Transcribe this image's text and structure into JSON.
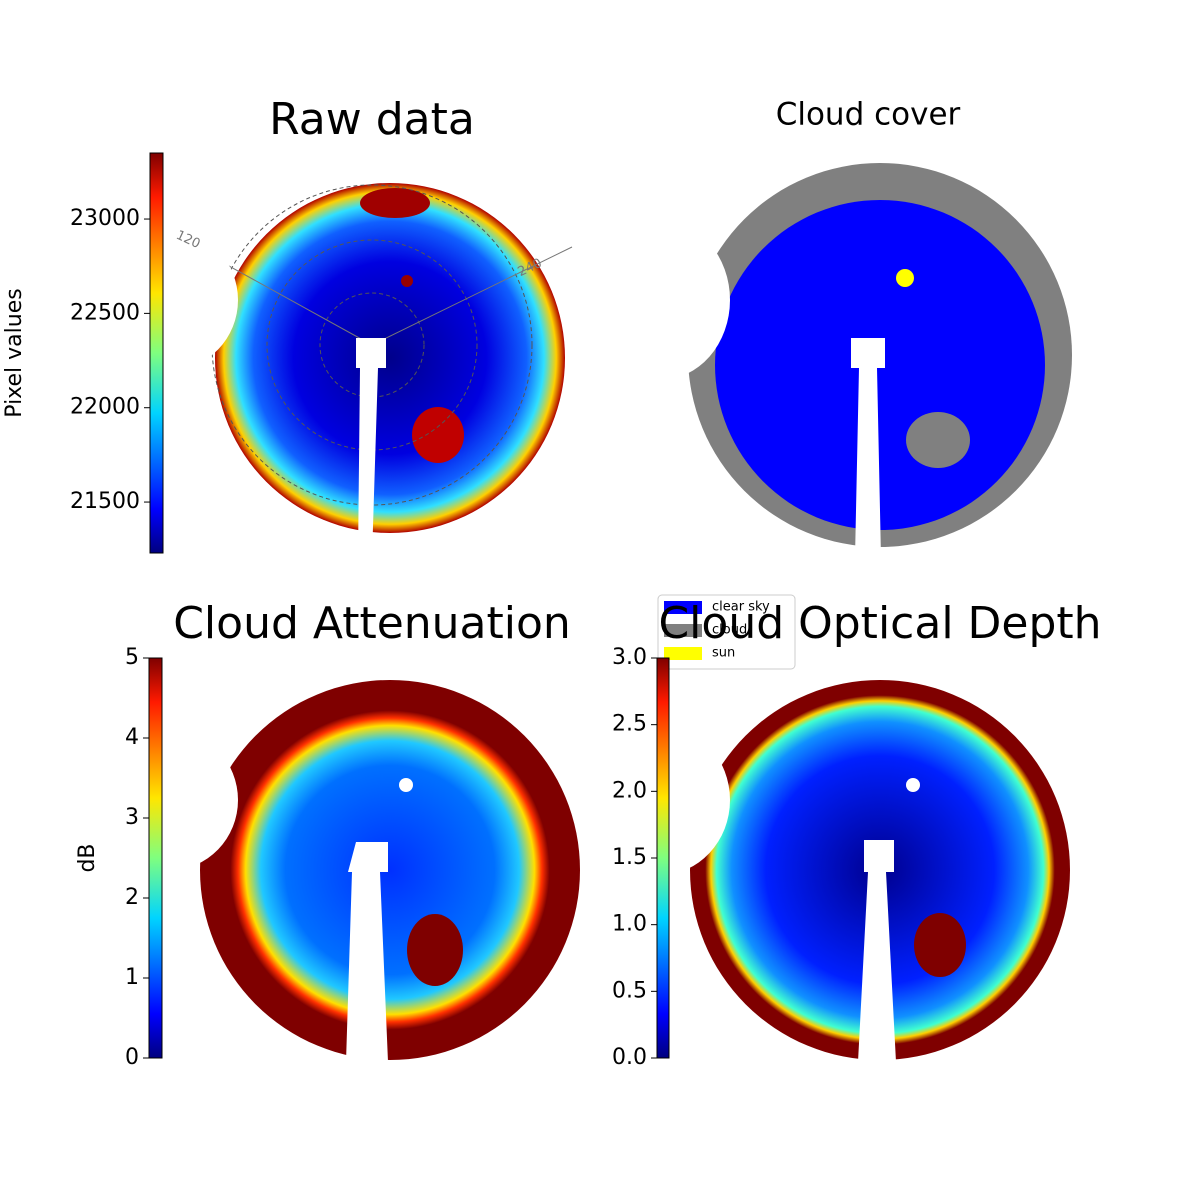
{
  "chart_data": [
    {
      "type": "image",
      "title": "Raw data",
      "colorbar": {
        "label": "Pixel values",
        "lim": [
          21230,
          23350
        ],
        "ticks": [
          21500,
          22000,
          22500,
          23000
        ]
      },
      "annotations": [
        "120",
        "240"
      ]
    },
    {
      "type": "image",
      "title": "Cloud cover",
      "legend": [
        {
          "name": "clear sky",
          "color": "#0000ff"
        },
        {
          "name": "cloud",
          "color": "#808080"
        },
        {
          "name": "sun",
          "color": "#ffff00"
        }
      ]
    },
    {
      "type": "image",
      "title": "Cloud Attenuation",
      "colorbar": {
        "label": "dB",
        "lim": [
          0,
          5
        ],
        "ticks": [
          0,
          1,
          2,
          3,
          4,
          5
        ]
      }
    },
    {
      "type": "image",
      "title": "Cloud Optical Depth",
      "colorbar": {
        "lim": [
          0,
          3
        ],
        "ticks": [
          {
            "value": 0,
            "label": "0.0"
          },
          0.5,
          {
            "value": 1,
            "label": "1.0"
          },
          1.5,
          {
            "value": 2,
            "label": "2.0"
          },
          2.5,
          {
            "value": 3,
            "label": "3.0"
          }
        ]
      }
    }
  ]
}
